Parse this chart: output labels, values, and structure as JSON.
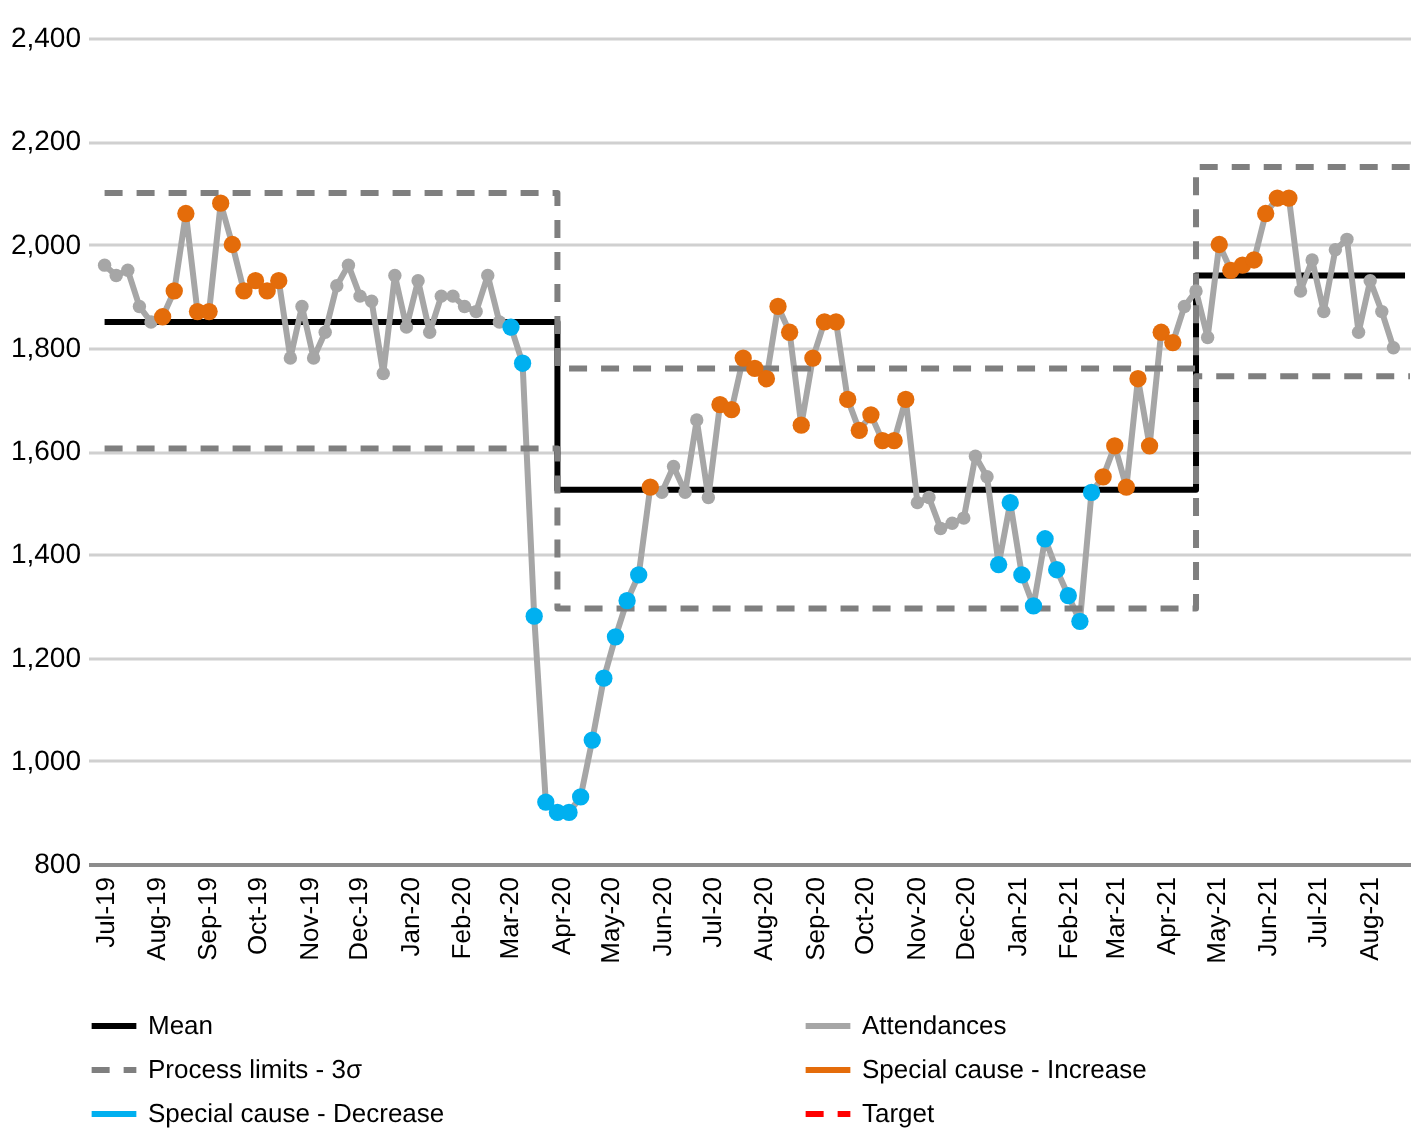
{
  "chart_data": {
    "type": "line",
    "grid": "y",
    "legend": "bottom",
    "marker": "circle",
    "xlim": [
      "2019-06-21",
      "2021-08-26"
    ],
    "xticks": [
      {
        "value": "2019-07-01",
        "label": "Jul-19"
      },
      {
        "value": "2019-08-01",
        "label": "Aug-19"
      },
      {
        "value": "2019-09-01",
        "label": "Sep-19"
      },
      {
        "value": "2019-10-01",
        "label": "Oct-19"
      },
      {
        "value": "2019-11-01",
        "label": "Nov-19"
      },
      {
        "value": "2019-12-01",
        "label": "Dec-19"
      },
      {
        "value": "2020-01-01",
        "label": "Jan-20"
      },
      {
        "value": "2020-02-01",
        "label": "Feb-20"
      },
      {
        "value": "2020-03-01",
        "label": "Mar-20"
      },
      {
        "value": "2020-04-01",
        "label": "Apr-20"
      },
      {
        "value": "2020-05-01",
        "label": "May-20"
      },
      {
        "value": "2020-06-01",
        "label": "Jun-20"
      },
      {
        "value": "2020-07-01",
        "label": "Jul-20"
      },
      {
        "value": "2020-08-01",
        "label": "Aug-20"
      },
      {
        "value": "2020-09-01",
        "label": "Sep-20"
      },
      {
        "value": "2020-10-01",
        "label": "Oct-20"
      },
      {
        "value": "2020-11-01",
        "label": "Nov-20"
      },
      {
        "value": "2020-12-01",
        "label": "Dec-20"
      },
      {
        "value": "2021-01-01",
        "label": "Jan-21"
      },
      {
        "value": "2021-02-01",
        "label": "Feb-21"
      },
      {
        "value": "2021-03-01",
        "label": "Mar-21"
      },
      {
        "value": "2021-04-01",
        "label": "Apr-21"
      },
      {
        "value": "2021-05-01",
        "label": "May-21"
      },
      {
        "value": "2021-06-01",
        "label": "Jun-21"
      },
      {
        "value": "2021-07-01",
        "label": "Jul-21"
      },
      {
        "value": "2021-08-01",
        "label": "Aug-21"
      }
    ],
    "ylim": [
      800,
      2400
    ],
    "yticks": [
      800,
      {
        "value": 1000,
        "label": "1,000"
      },
      {
        "value": 1200,
        "label": "1,200"
      },
      {
        "value": 1400,
        "label": "1,400"
      },
      {
        "value": 1600,
        "label": "1,600"
      },
      {
        "value": 1800,
        "label": "1,800"
      },
      {
        "value": 2000,
        "label": "2,000"
      },
      {
        "value": 2200,
        "label": "2,200"
      },
      {
        "value": 2400,
        "label": "2,400"
      }
    ],
    "series": [
      {
        "name": "Mean",
        "type": "step",
        "marker": "none",
        "line_style": "solid",
        "color": "#000000",
        "x": [
          "2019-07-01",
          "2020-03-30",
          "2021-04-19",
          "2021-08-23"
        ],
        "values": [
          1850,
          1525,
          1940,
          1940
        ]
      },
      {
        "name": "Attendances",
        "line_style": "solid",
        "color": "#a6a6a6",
        "x": [
          "2019-07-01",
          "2019-07-08",
          "2019-07-15",
          "2019-07-22",
          "2019-07-29",
          "2019-08-05",
          "2019-08-12",
          "2019-08-19",
          "2019-08-26",
          "2019-09-02",
          "2019-09-09",
          "2019-09-16",
          "2019-09-23",
          "2019-09-30",
          "2019-10-07",
          "2019-10-14",
          "2019-10-21",
          "2019-10-28",
          "2019-11-04",
          "2019-11-11",
          "2019-11-18",
          "2019-11-25",
          "2019-12-02",
          "2019-12-09",
          "2019-12-16",
          "2019-12-23",
          "2019-12-30",
          "2020-01-06",
          "2020-01-13",
          "2020-01-20",
          "2020-01-27",
          "2020-02-03",
          "2020-02-10",
          "2020-02-17",
          "2020-02-24",
          "2020-03-02",
          "2020-03-09",
          "2020-03-16",
          "2020-03-23",
          "2020-03-30",
          "2020-04-06",
          "2020-04-13",
          "2020-04-20",
          "2020-04-27",
          "2020-05-04",
          "2020-05-11",
          "2020-05-18",
          "2020-05-25",
          "2020-06-01",
          "2020-06-08",
          "2020-06-15",
          "2020-06-22",
          "2020-06-29",
          "2020-07-06",
          "2020-07-13",
          "2020-07-20",
          "2020-07-27",
          "2020-08-03",
          "2020-08-10",
          "2020-08-17",
          "2020-08-24",
          "2020-08-31",
          "2020-09-07",
          "2020-09-14",
          "2020-09-21",
          "2020-09-28",
          "2020-10-05",
          "2020-10-12",
          "2020-10-19",
          "2020-10-26",
          "2020-11-02",
          "2020-11-09",
          "2020-11-16",
          "2020-11-23",
          "2020-11-30",
          "2020-12-07",
          "2020-12-14",
          "2020-12-21",
          "2020-12-28",
          "2021-01-04",
          "2021-01-11",
          "2021-01-18",
          "2021-01-25",
          "2021-02-01",
          "2021-02-08",
          "2021-02-15",
          "2021-02-22",
          "2021-03-01",
          "2021-03-08",
          "2021-03-15",
          "2021-03-22",
          "2021-03-29",
          "2021-04-05",
          "2021-04-12",
          "2021-04-19",
          "2021-04-26",
          "2021-05-03",
          "2021-05-10",
          "2021-05-17",
          "2021-05-24",
          "2021-05-31",
          "2021-06-07",
          "2021-06-14",
          "2021-06-21",
          "2021-06-28",
          "2021-07-05",
          "2021-07-12",
          "2021-07-19",
          "2021-07-26",
          "2021-08-02",
          "2021-08-09",
          "2021-08-16"
        ],
        "values": [
          1960,
          1940,
          1950,
          1880,
          1850,
          1860,
          1910,
          2060,
          1870,
          1870,
          2080,
          2000,
          1910,
          1930,
          1910,
          1930,
          1780,
          1880,
          1780,
          1830,
          1920,
          1960,
          1900,
          1890,
          1750,
          1940,
          1840,
          1930,
          1830,
          1900,
          1900,
          1880,
          1870,
          1940,
          1850,
          1840,
          1770,
          1280,
          920,
          900,
          900,
          930,
          1040,
          1160,
          1240,
          1310,
          1360,
          1530,
          1520,
          1570,
          1520,
          1660,
          1510,
          1690,
          1680,
          1780,
          1760,
          1740,
          1880,
          1830,
          1650,
          1780,
          1850,
          1850,
          1700,
          1640,
          1670,
          1620,
          1620,
          1700,
          1500,
          1510,
          1450,
          1460,
          1470,
          1590,
          1550,
          1380,
          1500,
          1360,
          1300,
          1430,
          1370,
          1320,
          1270,
          1520,
          1550,
          1610,
          1530,
          1740,
          1610,
          1830,
          1810,
          1880,
          1910,
          1820,
          2000,
          1950,
          1960,
          1970,
          2060,
          2090,
          2090,
          1910,
          1970,
          1870,
          1990,
          2010,
          1830,
          1930,
          1870,
          1800
        ]
      },
      {
        "name": "Process limits - 3σ",
        "type": "step",
        "marker": "none",
        "line_style": "dashed",
        "color": "#7f7f7f",
        "x": [
          "2019-07-01",
          "2020-03-30",
          "2021-04-19",
          "2021-08-26"
        ],
        "values": [
          2100,
          1760,
          2150,
          2150
        ]
      },
      {
        "type": "step",
        "marker": "none",
        "line_style": "dashed",
        "color": "#7f7f7f",
        "x": [
          "2019-07-01",
          "2020-03-30",
          "2021-04-19",
          "2021-08-26"
        ],
        "values": [
          1605,
          1295,
          1745,
          1745
        ]
      },
      {
        "name": "Special cause - Increase",
        "type": "scatter",
        "color": "#e46c0a",
        "x": [
          "2019-08-05",
          "2019-08-12",
          "2019-08-19",
          "2019-08-26",
          "2019-09-02",
          "2019-09-09",
          "2019-09-16",
          "2019-09-23",
          "2019-09-30",
          "2019-10-07",
          "2019-10-14",
          "2020-05-25",
          "2020-07-06",
          "2020-07-13",
          "2020-07-20",
          "2020-07-27",
          "2020-08-03",
          "2020-08-10",
          "2020-08-17",
          "2020-08-24",
          "2020-08-31",
          "2020-09-07",
          "2020-09-14",
          "2020-09-21",
          "2020-09-28",
          "2020-10-05",
          "2020-10-12",
          "2020-10-19",
          "2020-10-26",
          "2021-02-22",
          "2021-03-01",
          "2021-03-08",
          "2021-03-15",
          "2021-03-22",
          "2021-03-29",
          "2021-04-05",
          "2021-05-03",
          "2021-05-10",
          "2021-05-17",
          "2021-05-24",
          "2021-05-31",
          "2021-06-07",
          "2021-06-14"
        ],
        "values": [
          1860,
          1910,
          2060,
          1870,
          1870,
          2080,
          2000,
          1910,
          1930,
          1910,
          1930,
          1530,
          1690,
          1680,
          1780,
          1760,
          1740,
          1880,
          1830,
          1650,
          1780,
          1850,
          1850,
          1700,
          1640,
          1670,
          1620,
          1620,
          1700,
          1550,
          1610,
          1530,
          1740,
          1610,
          1830,
          1810,
          2000,
          1950,
          1960,
          1970,
          2060,
          2090,
          2090
        ]
      },
      {
        "name": "Special cause  - Decrease",
        "type": "scatter",
        "color": "#00b0f0",
        "x": [
          "2020-03-02",
          "2020-03-09",
          "2020-03-16",
          "2020-03-23",
          "2020-03-30",
          "2020-04-06",
          "2020-04-13",
          "2020-04-20",
          "2020-04-27",
          "2020-05-04",
          "2020-05-11",
          "2020-05-18",
          "2020-12-21",
          "2020-12-28",
          "2021-01-04",
          "2021-01-11",
          "2021-01-18",
          "2021-01-25",
          "2021-02-01",
          "2021-02-08",
          "2021-02-15"
        ],
        "values": [
          1840,
          1770,
          1280,
          920,
          900,
          900,
          930,
          1040,
          1160,
          1240,
          1310,
          1360,
          1380,
          1500,
          1360,
          1300,
          1430,
          1370,
          1320,
          1270,
          1520
        ]
      },
      {
        "name": "Target",
        "marker": "none",
        "line_style": "dashed",
        "color": "#ff0000"
      }
    ]
  }
}
